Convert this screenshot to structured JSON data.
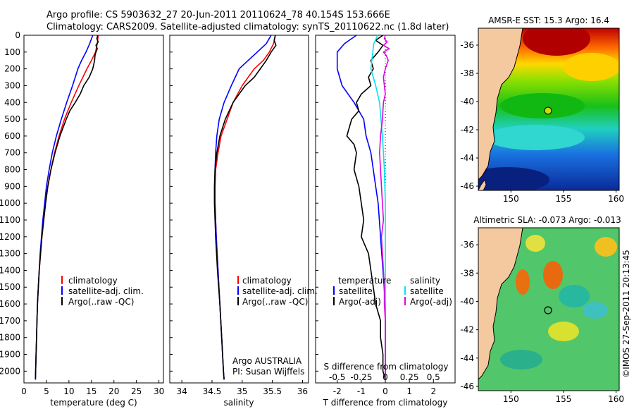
{
  "header": {
    "line1": "Argo profile: CS 5903632_27 20-Jun-2011 20110624_78 40.154S 153.666E",
    "line2": "Climatology: CARS2009. Satellite-adjusted climatology: synTS_20110622.nc (1.8d later)"
  },
  "colors": {
    "climatology": "#ff0000",
    "satellite": "#0000ff",
    "argo": "#000000",
    "sat_t_diff": "#00e5ee",
    "argo_s_diff": "#e000e0",
    "land": "#f5c9a0",
    "sst_warm": "#cc0000",
    "sst_cool": "#0a2a9a"
  },
  "depth_axis": {
    "ticks": [
      "0",
      "100",
      "200",
      "300",
      "400",
      "500",
      "600",
      "700",
      "800",
      "900",
      "1000",
      "1100",
      "1200",
      "1300",
      "1400",
      "1500",
      "1600",
      "1700",
      "1800",
      "1900",
      "2000"
    ]
  },
  "chart_data": [
    {
      "type": "line",
      "id": "temperature",
      "xlabel": "temperature (deg C)",
      "xlim": [
        0,
        31
      ],
      "ylim": [
        2070,
        0
      ],
      "xticks": [
        "0",
        "5",
        "10",
        "15",
        "20",
        "25",
        "30"
      ],
      "legend": {
        "placement": "lower-middle",
        "entries": [
          "climatology",
          "satellite-adj. clim.",
          "Argo(..raw -QC)"
        ]
      },
      "series": [
        {
          "name": "climatology",
          "depth": [
            0,
            50,
            100,
            150,
            200,
            300,
            400,
            500,
            600,
            700,
            800,
            900,
            1000,
            1100,
            1200,
            1300,
            1400,
            1500,
            1600,
            1700,
            1800,
            1900,
            2000,
            2050
          ],
          "values": [
            16.5,
            16.3,
            15.9,
            15.0,
            14.0,
            12.2,
            10.5,
            9.0,
            7.8,
            6.8,
            6.0,
            5.3,
            4.8,
            4.4,
            4.0,
            3.7,
            3.4,
            3.2,
            3.0,
            2.9,
            2.8,
            2.7,
            2.6,
            2.55
          ]
        },
        {
          "name": "satellite-adj. clim.",
          "depth": [
            0,
            50,
            100,
            150,
            200,
            300,
            400,
            500,
            600,
            700,
            800,
            900,
            1000,
            1100,
            1200,
            1300,
            1400,
            1500,
            1600,
            1700,
            1800,
            1900,
            2000,
            2050
          ],
          "values": [
            15.3,
            14.6,
            13.8,
            12.8,
            12.0,
            10.8,
            9.5,
            8.3,
            7.2,
            6.3,
            5.6,
            5.0,
            4.6,
            4.2,
            3.9,
            3.6,
            3.4,
            3.2,
            3.0,
            2.9,
            2.8,
            2.7,
            2.6,
            2.55
          ]
        },
        {
          "name": "Argo(..raw -QC)",
          "depth": [
            0,
            20,
            40,
            60,
            80,
            100,
            120,
            150,
            200,
            250,
            300,
            350,
            400,
            450,
            500,
            600,
            700,
            800,
            900,
            1000,
            1100,
            1200,
            1300,
            1400,
            1500,
            1600,
            1700,
            1800,
            1900,
            2000,
            2050
          ],
          "values": [
            16.4,
            16.2,
            16.5,
            16.0,
            16.3,
            16.0,
            15.8,
            15.7,
            15.3,
            14.5,
            13.3,
            12.5,
            11.4,
            10.2,
            9.4,
            8.0,
            6.9,
            6.0,
            5.3,
            4.8,
            4.4,
            4.0,
            3.7,
            3.4,
            3.2,
            3.0,
            2.9,
            2.8,
            2.7,
            2.6,
            2.55
          ]
        }
      ]
    },
    {
      "type": "line",
      "id": "salinity",
      "xlabel": "salinity",
      "xlim": [
        33.8,
        36.1
      ],
      "ylim": [
        2070,
        0
      ],
      "xticks": [
        "34",
        "34.5",
        "35",
        "35.5",
        "36"
      ],
      "legend": {
        "placement": "lower-middle",
        "entries": [
          "climatology",
          "satellite-adj. clim.",
          "Argo(..raw -QC)"
        ]
      },
      "annotation": [
        "Argo AUSTRALIA",
        "PI: Susan Wijffels"
      ],
      "series": [
        {
          "name": "climatology",
          "depth": [
            0,
            50,
            100,
            150,
            200,
            300,
            400,
            500,
            600,
            700,
            800,
            900,
            1000,
            1200,
            1400,
            1600,
            1800,
            2000,
            2050
          ],
          "values": [
            35.55,
            35.52,
            35.45,
            35.35,
            35.2,
            35.0,
            34.85,
            34.75,
            34.65,
            34.6,
            34.56,
            34.55,
            34.55,
            34.57,
            34.6,
            34.63,
            34.66,
            34.69,
            34.7
          ]
        },
        {
          "name": "satellite-adj. clim.",
          "depth": [
            0,
            50,
            100,
            150,
            200,
            300,
            400,
            500,
            600,
            700,
            800,
            900,
            1000,
            1200,
            1400,
            1600,
            1800,
            2000,
            2050
          ],
          "values": [
            35.48,
            35.4,
            35.25,
            35.1,
            34.95,
            34.82,
            34.7,
            34.62,
            34.58,
            34.56,
            34.55,
            34.55,
            34.55,
            34.57,
            34.6,
            34.63,
            34.66,
            34.69,
            34.7
          ]
        },
        {
          "name": "Argo(..raw -QC)",
          "depth": [
            0,
            30,
            60,
            100,
            150,
            200,
            250,
            300,
            400,
            500,
            600,
            700,
            800,
            900,
            1000,
            1200,
            1400,
            1600,
            1800,
            2000,
            2050
          ],
          "values": [
            35.55,
            35.53,
            35.56,
            35.48,
            35.4,
            35.3,
            35.2,
            35.05,
            34.85,
            34.72,
            34.63,
            34.58,
            34.55,
            34.54,
            34.54,
            34.56,
            34.59,
            34.63,
            34.66,
            34.69,
            34.7
          ]
        }
      ]
    },
    {
      "type": "line",
      "id": "difference",
      "xlabel": "T difference from climatology",
      "xlabel_top": "S difference from climatology",
      "xlim": [
        -2.9,
        2.9
      ],
      "ylim": [
        2070,
        0
      ],
      "xticks": [
        "-2",
        "-1",
        "0",
        "1",
        "2"
      ],
      "xticks_top": [
        "-0.5",
        "-0.25",
        "0",
        "0.25",
        "0.5"
      ],
      "legend": {
        "placement": "lower-middle",
        "headers": [
          "temperature",
          "salinity"
        ],
        "entries": [
          "satellite",
          "Argo(-adj)",
          "satellite",
          "Argo(-adj)"
        ]
      },
      "series": [
        {
          "name": "temperature satellite",
          "depth": [
            0,
            50,
            100,
            200,
            300,
            400,
            500,
            600,
            700,
            800,
            900,
            1000,
            1200,
            1400,
            1600,
            2050
          ],
          "values": [
            -1.2,
            -1.7,
            -2.0,
            -2.0,
            -1.8,
            -1.3,
            -0.9,
            -0.8,
            -0.6,
            -0.5,
            -0.4,
            -0.3,
            -0.2,
            -0.1,
            0.0,
            0.0
          ]
        },
        {
          "name": "temperature Argo(-adj)",
          "depth": [
            0,
            30,
            60,
            100,
            150,
            200,
            250,
            300,
            350,
            400,
            450,
            500,
            550,
            600,
            650,
            700,
            800,
            900,
            1000,
            1100,
            1200,
            1300,
            1400,
            1500,
            1600,
            1700,
            1800,
            1900,
            2000,
            2050
          ],
          "values": [
            -0.1,
            -0.4,
            -0.1,
            -0.3,
            -0.6,
            -0.5,
            -0.7,
            -0.6,
            -1.0,
            -1.2,
            -1.1,
            -1.4,
            -1.5,
            -1.6,
            -1.3,
            -1.2,
            -1.3,
            -1.1,
            -1.0,
            -0.9,
            -1.0,
            -0.7,
            -0.6,
            -0.5,
            -0.4,
            -0.2,
            -0.2,
            -0.1,
            -0.1,
            0.0
          ]
        },
        {
          "name": "salinity satellite",
          "depth": [
            0,
            50,
            100,
            200,
            300,
            400,
            600,
            800,
            1000,
            1200,
            1400,
            1600,
            1800,
            2000,
            2050
          ],
          "values": [
            -0.08,
            -0.12,
            -0.13,
            -0.15,
            -0.1,
            -0.06,
            -0.03,
            -0.01,
            0.0,
            0.0,
            0.0,
            0.0,
            0.0,
            0.0,
            0.0
          ]
        },
        {
          "name": "salinity Argo(-adj)",
          "depth": [
            0,
            20,
            40,
            60,
            80,
            100,
            120,
            150,
            200,
            250,
            300,
            350,
            400,
            500,
            600,
            700,
            800,
            900,
            1000,
            1100,
            1200,
            1300,
            1400,
            1500,
            1600,
            1700,
            1800,
            1900,
            2000,
            2050
          ],
          "values": [
            0.0,
            -0.01,
            0.02,
            -0.02,
            0.04,
            -0.02,
            0.01,
            0.03,
            0.0,
            -0.02,
            -0.01,
            0.0,
            -0.02,
            -0.03,
            -0.05,
            -0.06,
            -0.05,
            -0.04,
            -0.03,
            -0.02,
            -0.04,
            -0.03,
            -0.02,
            -0.01,
            -0.01,
            0.0,
            0.0,
            0.0,
            0.0,
            0.0
          ]
        }
      ]
    }
  ],
  "maps": {
    "sst": {
      "title": "AMSR-E SST: 15.3 Argo: 16.4",
      "lat_ticks": [
        "-36",
        "-38",
        "-40",
        "-42",
        "-44",
        "-46"
      ],
      "lon_ticks": [
        "150",
        "155",
        "160"
      ]
    },
    "sla": {
      "title": "Altimetric SLA: -0.073 Argo: -0.013",
      "lat_ticks": [
        "-36",
        "-38",
        "-40",
        "-42",
        "-44",
        "-46"
      ],
      "lon_ticks": [
        "150",
        "155",
        "160"
      ]
    }
  },
  "footer": {
    "credit": "©IMOS 27-Sep-2011 20:13:45"
  }
}
